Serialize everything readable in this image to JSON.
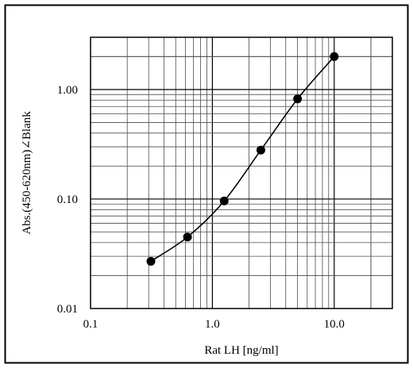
{
  "chart_data": {
    "type": "line",
    "title": "",
    "xlabel": "Rat LH [ng/ml]",
    "ylabel": "Abs.(450-620nm)∠Blank",
    "x_scale": "log",
    "y_scale": "log",
    "xlim": [
      0.1,
      30
    ],
    "ylim": [
      0.01,
      3
    ],
    "grid": true,
    "x_tick_labels": [
      "0.1",
      "1.0",
      "10.0"
    ],
    "y_tick_labels": [
      "0.01",
      "0.10",
      "1.00"
    ],
    "series": [
      {
        "marker": "circle",
        "color": "#000000",
        "points": [
          {
            "x": 0.313,
            "y": 0.027
          },
          {
            "x": 0.625,
            "y": 0.045
          },
          {
            "x": 1.25,
            "y": 0.096
          },
          {
            "x": 2.5,
            "y": 0.28
          },
          {
            "x": 5.0,
            "y": 0.82
          },
          {
            "x": 10.0,
            "y": 2.0
          }
        ]
      }
    ]
  }
}
